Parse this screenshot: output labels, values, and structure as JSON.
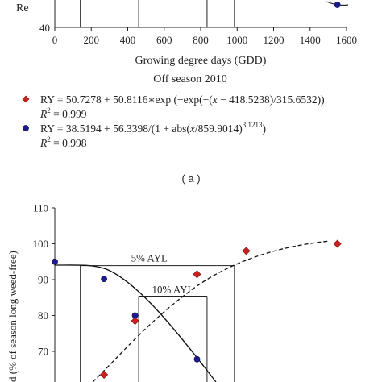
{
  "top_panel": {
    "y_axis_label_fragment": "Re",
    "x_axis_label": "Growing degree days (GDD)",
    "subtitle": "Off season 2010",
    "eq1": {
      "prefix": "RY = 50.7278 + 50.8116∗exp (−exp(−(",
      "x1": "x",
      "mid": " − 418.5238)/315.6532))"
    },
    "eq1_r2": {
      "r": "R",
      "exp": "2",
      "rest": " = 0.999"
    },
    "eq2": {
      "prefix": "RY = 38.5194 + 56.3398/(1 + abs(",
      "x1": "x",
      "mid": "/859.9014)",
      "sup": "3.1213",
      "end": ")"
    },
    "eq2_r2": {
      "r": "R",
      "exp": "2",
      "rest": " = 0.998"
    },
    "panel_label": "( a )"
  },
  "bottom_panel": {
    "y_axis_label_fragment": "d (% of season long weed-free)",
    "ayl5_label": "5% AYL",
    "ayl10_label": "10% AYL"
  },
  "colors": {
    "diamond": "#cc1f1f",
    "circle": "#1c1c8c",
    "axis": "#222222"
  },
  "chart_data": [
    {
      "type": "scatter",
      "x_ticks": [
        "0",
        "200",
        "400",
        "600",
        "800",
        "1000",
        "1200",
        "1400",
        "1600"
      ],
      "xlim": [
        0,
        1600
      ],
      "y_ticks_visible": [
        "40"
      ],
      "reference_lines_x": [
        140,
        460,
        835,
        985
      ],
      "series": [
        {
          "marker": "circle",
          "points": [
            [
              1550,
              48
            ]
          ]
        }
      ]
    },
    {
      "type": "scatter",
      "y_ticks": [
        "70",
        "80",
        "90",
        "100",
        "110"
      ],
      "ylim": [
        60,
        110
      ],
      "xlim": [
        0,
        1600
      ],
      "series": [
        {
          "marker": "diamond",
          "points": [
            [
              270,
              63.5
            ],
            [
              440,
              78.5
            ],
            [
              780,
              91.5
            ],
            [
              1050,
              98
            ],
            [
              1550,
              100
            ]
          ]
        },
        {
          "marker": "circle",
          "points": [
            [
              0,
              95
            ],
            [
              270,
              90.2
            ],
            [
              440,
              80
            ],
            [
              780,
              67.8
            ]
          ]
        }
      ],
      "reference_lines": {
        "ayl5": {
          "y": 93.9,
          "x_from": 140,
          "x_to": 985
        },
        "ayl10": {
          "y": 85.4,
          "x_from": 460,
          "x_to": 835
        }
      }
    }
  ]
}
